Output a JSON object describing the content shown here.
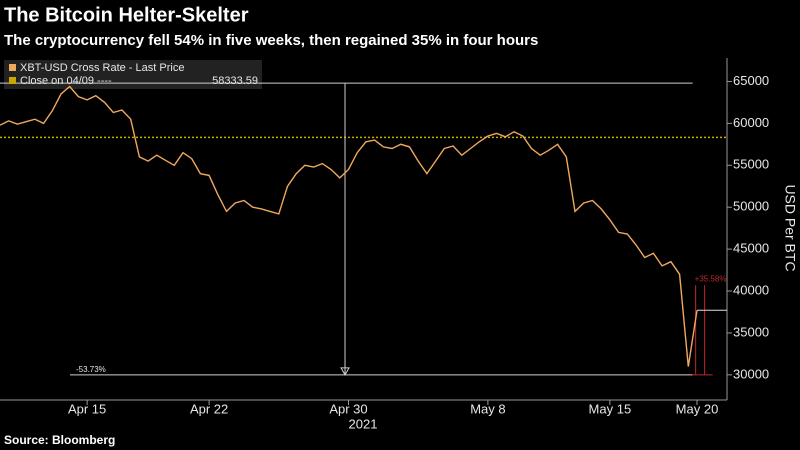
{
  "chart_data": {
    "type": "line",
    "title": "The Bitcoin Helter-Skelter",
    "subtitle": "The cryptocurrency fell 54% in five weeks, then regained 35% in four hours",
    "y_label": "USD Per BTC",
    "x_label": "2021",
    "source": "Source: Bloomberg",
    "categories": [
      null,
      null,
      null,
      null,
      null,
      null,
      null,
      null,
      null,
      null,
      "Apr 15",
      null,
      null,
      null,
      null,
      null,
      null,
      null,
      null,
      null,
      null,
      null,
      null,
      null,
      "Apr 22",
      null,
      null,
      null,
      null,
      null,
      null,
      null,
      null,
      null,
      null,
      null,
      null,
      null,
      null,
      null,
      "Apr 30",
      null,
      null,
      null,
      null,
      null,
      null,
      null,
      null,
      null,
      null,
      null,
      null,
      null,
      null,
      null,
      "May 8",
      null,
      null,
      null,
      null,
      null,
      null,
      null,
      null,
      null,
      null,
      null,
      null,
      null,
      "May 15",
      null,
      null,
      null,
      null,
      null,
      null,
      null,
      null,
      null,
      "May 20"
    ],
    "series": [
      {
        "name": "XBT-USD Cross Rate - Last Price",
        "color": "#f0a860",
        "values": [
          59800,
          60300,
          59900,
          60200,
          60500,
          60000,
          61500,
          63500,
          64400,
          63200,
          62800,
          63300,
          62500,
          61300,
          61600,
          60500,
          56000,
          55500,
          56200,
          55600,
          55000,
          56500,
          55800,
          54000,
          53800,
          51500,
          49500,
          50500,
          50800,
          50000,
          49800,
          49500,
          49200,
          52500,
          54000,
          55000,
          54800,
          55200,
          54500,
          53500,
          54500,
          56500,
          57800,
          58000,
          57200,
          57000,
          57500,
          57200,
          55500,
          54000,
          55500,
          57000,
          57300,
          56200,
          57000,
          57800,
          58500,
          58800,
          58400,
          59000,
          58500,
          57000,
          56200,
          56800,
          57500,
          56000,
          49500,
          50500,
          50800,
          49800,
          48500,
          47000,
          46800,
          45500,
          44000,
          44500,
          43000,
          43500,
          42000,
          31000,
          37700
        ]
      }
    ],
    "close": {
      "label": "Close on 04/09 ----",
      "value": 58333.59,
      "color": "#c8a800"
    },
    "annotations": [
      {
        "label": "-53.73%",
        "y": 64800,
        "y_end": 30000,
        "color": "#d0d0d0"
      },
      {
        "label": "+35.58%",
        "y": 30000,
        "y_end": 40700,
        "color": "#c0282d"
      }
    ],
    "ylim": [
      27000,
      67800
    ],
    "yticks": [
      30000,
      35000,
      40000,
      45000,
      50000,
      55000,
      60000,
      65000
    ],
    "grid": false
  }
}
